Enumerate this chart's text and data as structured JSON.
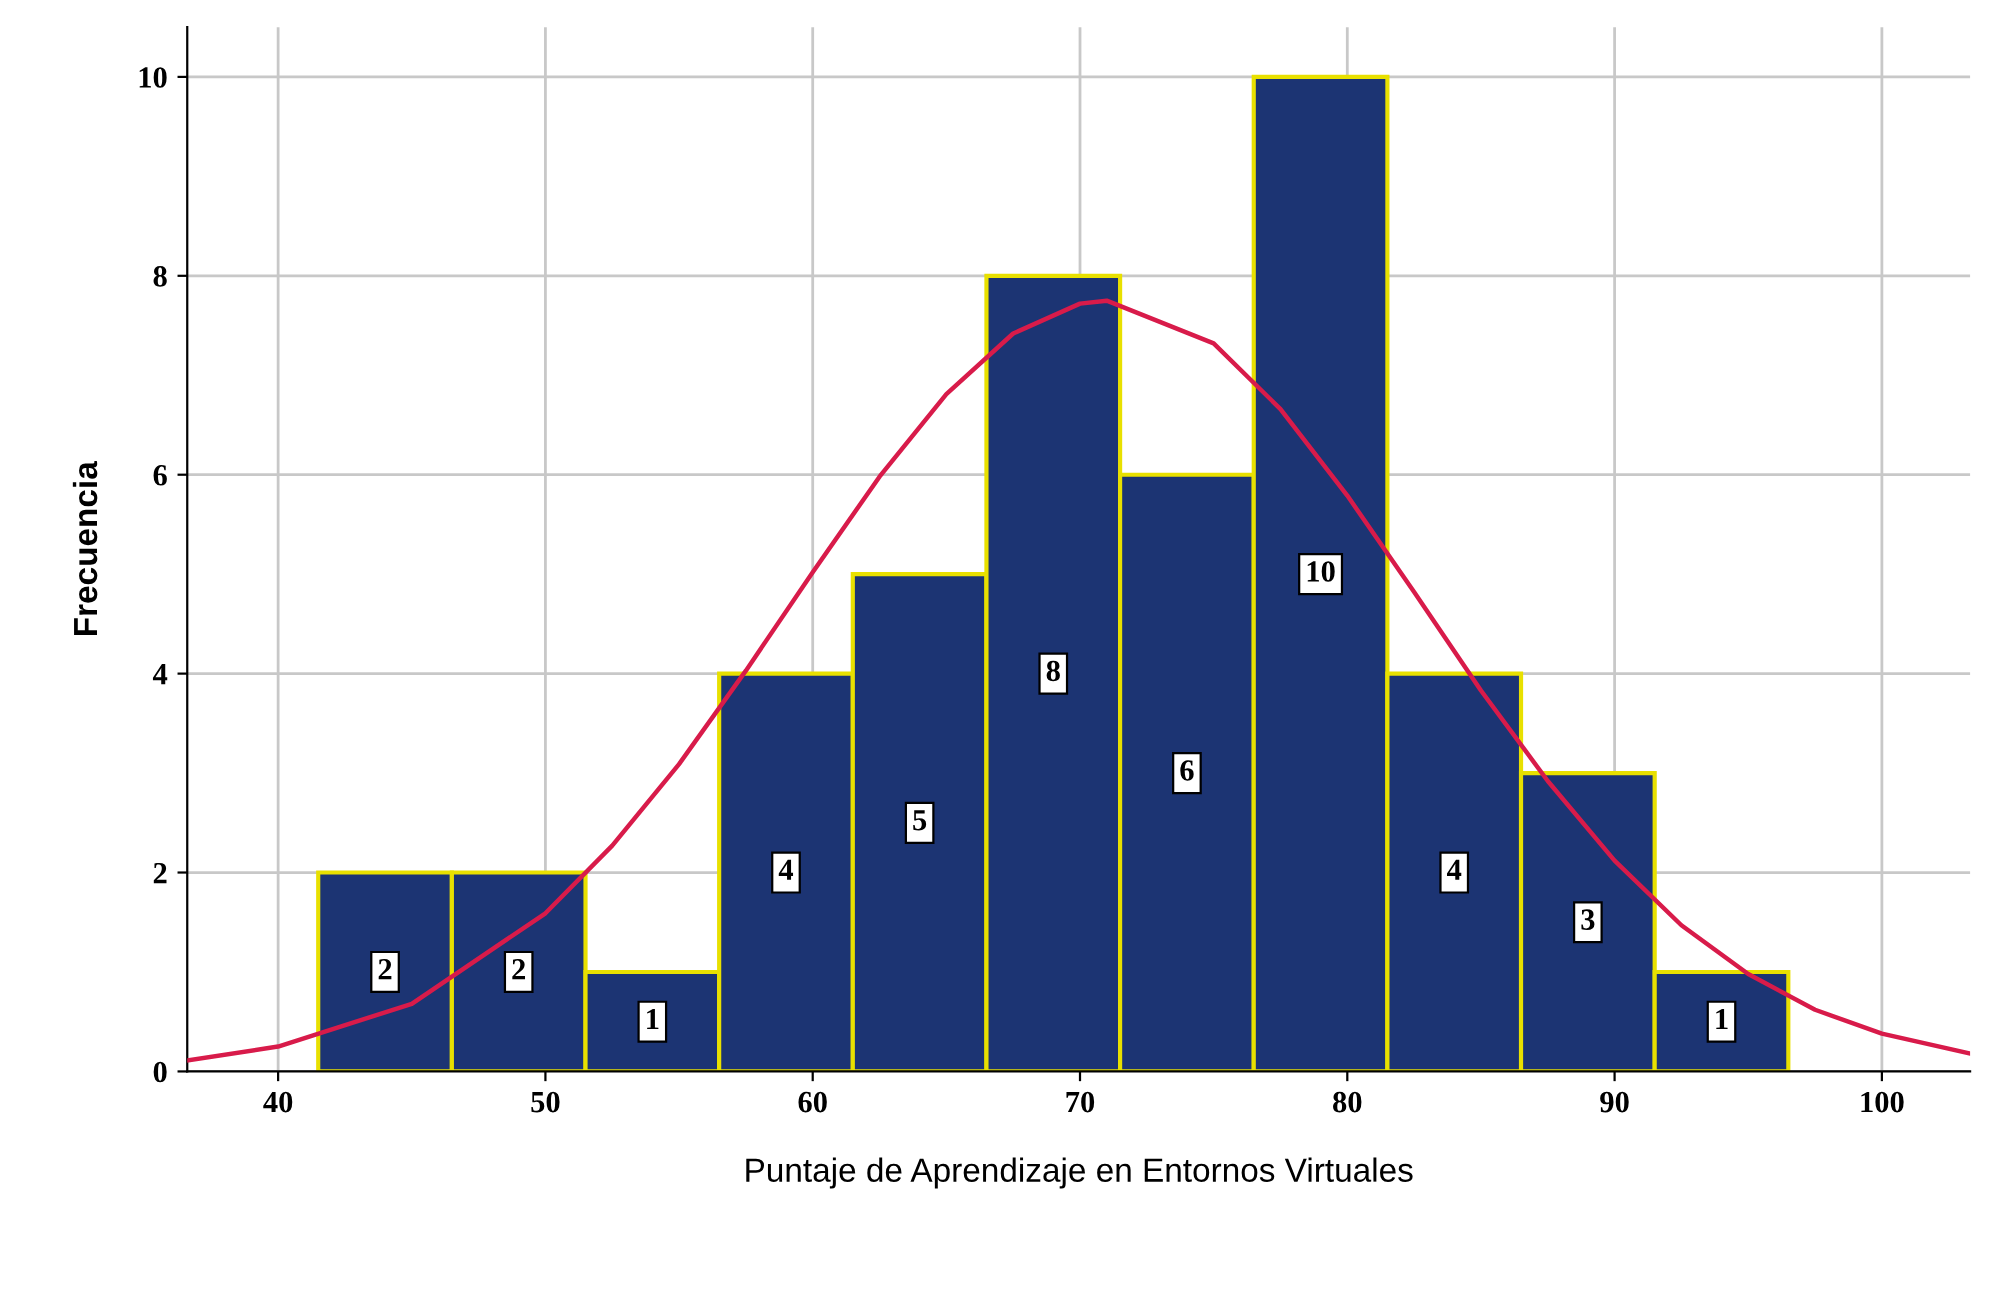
{
  "chart_data": {
    "type": "histogram",
    "xlabel": "Puntaje de Aprendizaje en Entornos Virtuales",
    "ylabel": "Frecuencia",
    "series": [
      {
        "bins": [
          41.5,
          46.5,
          51.5,
          56.5,
          61.5,
          66.5,
          71.5,
          76.5,
          81.5,
          86.5,
          91.5,
          96.5
        ],
        "values": [
          2,
          2,
          1,
          4,
          5,
          8,
          6,
          10,
          4,
          3,
          1
        ],
        "value_labels": [
          "2",
          "2",
          "1",
          "4",
          "5",
          "8",
          "6",
          "10",
          "4",
          "3",
          "1"
        ],
        "color": "#1c3473"
      },
      {
        "type": "line",
        "x": [
          36.6,
          40,
          45,
          50,
          52.5,
          55,
          57.5,
          60,
          62.5,
          65,
          67.5,
          70,
          71,
          75,
          77.5,
          80,
          82.5,
          85,
          87.5,
          90,
          92.5,
          95,
          97.5,
          100,
          103.3
        ],
        "values": [
          0.11,
          0.25,
          0.68,
          1.59,
          2.27,
          3.09,
          4.03,
          5.02,
          5.98,
          6.81,
          7.42,
          7.72,
          7.75,
          7.32,
          6.66,
          5.79,
          4.82,
          3.83,
          2.92,
          2.12,
          1.47,
          0.98,
          0.62,
          0.38,
          0.18
        ],
        "color": "#d81b4a"
      }
    ],
    "xlim": [
      36.6,
      103.3
    ],
    "ylim": [
      0,
      10.5
    ],
    "xticks": [
      40,
      50,
      60,
      70,
      80,
      90,
      100
    ],
    "yticks": [
      0,
      2,
      4,
      6,
      8,
      10
    ],
    "grid": true,
    "marker": "none",
    "line_style": "solid"
  }
}
